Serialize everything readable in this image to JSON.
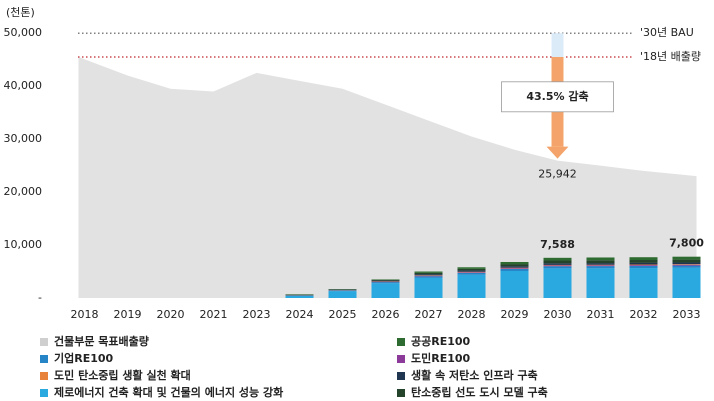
{
  "chart_data": {
    "type": "combo",
    "unit_label": "(천톤)",
    "categories": [
      "2018",
      "2019",
      "2020",
      "2021",
      "2023",
      "2024",
      "2025",
      "2026",
      "2027",
      "2028",
      "2029",
      "2030",
      "2031",
      "2032",
      "2033"
    ],
    "ylim": [
      0,
      54000
    ],
    "yticks": [
      {
        "value": 0,
        "label": "-"
      },
      {
        "value": 10000,
        "label": "10,000"
      },
      {
        "value": 20000,
        "label": "20,000"
      },
      {
        "value": 30000,
        "label": "30,000"
      },
      {
        "value": 40000,
        "label": "40,000"
      },
      {
        "value": 50000,
        "label": "50,000"
      }
    ],
    "reference_lines": [
      {
        "value": 50000,
        "label": "'30년 BAU",
        "color": "#3a7fc0",
        "line_color": "#555555"
      },
      {
        "value": 45500,
        "label": "'18년 배출량",
        "color": "#c0282d",
        "line_color": "#c0282d"
      }
    ],
    "reduction_label": "43.5% 감축",
    "series": [
      {
        "name": "건물부문 목표배출량",
        "type": "area",
        "color": "#e2e2e2",
        "values": [
          45500,
          42000,
          39500,
          39000,
          42500,
          41000,
          39500,
          36500,
          33500,
          30500,
          28000,
          25942,
          25000,
          24000,
          23000
        ],
        "value_labels": [
          null,
          null,
          null,
          null,
          null,
          null,
          null,
          null,
          null,
          null,
          null,
          "25,942",
          null,
          null,
          null
        ]
      },
      {
        "name": "제로에너지 건축 확대 및 건물의 에너지 성능 강화",
        "type": "bar",
        "color": "#2aa8e0",
        "values": [
          null,
          null,
          null,
          null,
          null,
          400,
          1300,
          2800,
          3800,
          4400,
          5100,
          5600,
          5620,
          5650,
          5700
        ]
      },
      {
        "name": "기업RE100",
        "type": "bar",
        "color": "#2585c7",
        "values": [
          null,
          null,
          null,
          null,
          null,
          60,
          120,
          200,
          300,
          340,
          380,
          400,
          405,
          410,
          420
        ]
      },
      {
        "name": "도민RE100",
        "type": "bar",
        "color": "#8b3a9a",
        "values": [
          null,
          null,
          null,
          null,
          null,
          20,
          40,
          70,
          100,
          120,
          140,
          150,
          152,
          155,
          160
        ]
      },
      {
        "name": "도민 탄소중립 생활 실천 확대",
        "type": "bar",
        "color": "#e8823a",
        "values": [
          null,
          null,
          null,
          null,
          null,
          20,
          40,
          60,
          80,
          90,
          95,
          100,
          103,
          105,
          110
        ]
      },
      {
        "name": "생활 속 저탄소 인프라 구축",
        "type": "bar",
        "color": "#1f3550",
        "values": [
          null,
          null,
          null,
          null,
          null,
          50,
          80,
          150,
          220,
          260,
          290,
          300,
          305,
          310,
          320
        ]
      },
      {
        "name": "탄소중립 선도 도시 모델 구축",
        "type": "bar",
        "color": "#23432a",
        "values": [
          null,
          null,
          null,
          null,
          null,
          80,
          60,
          120,
          250,
          290,
          395,
          538,
          540,
          540,
          540
        ]
      },
      {
        "name": "공공RE100",
        "type": "bar",
        "color": "#2e6b30",
        "values": [
          null,
          null,
          null,
          null,
          null,
          70,
          60,
          100,
          250,
          300,
          400,
          500,
          525,
          530,
          550
        ]
      }
    ],
    "totals": [
      null,
      null,
      null,
      null,
      null,
      null,
      null,
      null,
      null,
      null,
      null,
      7588,
      null,
      null,
      7800
    ],
    "total_labels": [
      null,
      null,
      null,
      null,
      null,
      null,
      null,
      null,
      null,
      null,
      null,
      "7,588",
      null,
      null,
      "7,800"
    ]
  }
}
